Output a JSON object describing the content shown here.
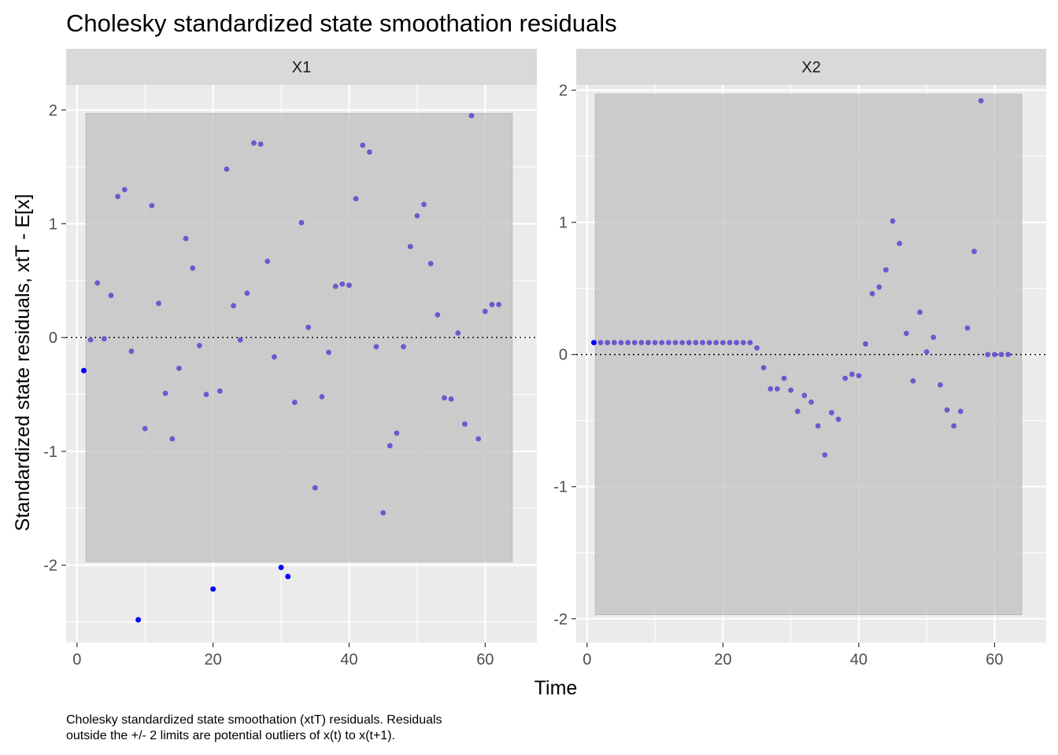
{
  "chart_data": {
    "type": "scatter",
    "title": "Cholesky standardized state smoothation residuals",
    "xlabel": "Time",
    "ylabel": "Standardized state residuals, xtT - E[x]",
    "caption_lines": [
      "Cholesky standardized state smoothation (xtT) residuals. Residuals",
      "outside the +/- 2 limits are potential outliers of x(t) to x(t+1)."
    ],
    "colors": {
      "panel_bg": "#EBEBEB",
      "grid": "#FFFFFF",
      "strip_bg": "#D9D9D9",
      "band": "#BEBEBE",
      "point": "#6A5ACD",
      "outlier": "#0000FF",
      "tick": "#333333"
    },
    "panels": [
      {
        "strip": "X1",
        "xlim": [
          -1.6,
          67.6
        ],
        "ylim": [
          -2.68,
          2.22
        ],
        "xticks": [
          0,
          20,
          40,
          60
        ],
        "xtick_labels": [
          "0",
          "20",
          "40",
          "60"
        ],
        "yticks": [
          -2,
          -1,
          0,
          1,
          2
        ],
        "ytick_labels": [
          "-2",
          "-1",
          "0",
          "1",
          "2"
        ],
        "band": {
          "x": [
            1.3,
            64
          ],
          "y": [
            -1.97,
            1.97
          ]
        },
        "points": [
          [
            1,
            -0.29
          ],
          [
            2,
            -0.02
          ],
          [
            3,
            0.48
          ],
          [
            4,
            -0.01
          ],
          [
            5,
            0.37
          ],
          [
            6,
            1.24
          ],
          [
            7,
            1.3
          ],
          [
            8,
            -0.12
          ],
          [
            9,
            -2.48
          ],
          [
            10,
            -0.8
          ],
          [
            11,
            1.16
          ],
          [
            12,
            0.3
          ],
          [
            13,
            -0.49
          ],
          [
            14,
            -0.89
          ],
          [
            15,
            -0.27
          ],
          [
            16,
            0.87
          ],
          [
            17,
            0.61
          ],
          [
            18,
            -0.07
          ],
          [
            19,
            -0.5
          ],
          [
            20,
            -2.21
          ],
          [
            21,
            -0.47
          ],
          [
            22,
            1.48
          ],
          [
            23,
            0.28
          ],
          [
            24,
            -0.02
          ],
          [
            25,
            0.39
          ],
          [
            26,
            1.71
          ],
          [
            27,
            1.7
          ],
          [
            28,
            0.67
          ],
          [
            29,
            -0.17
          ],
          [
            30,
            -2.02
          ],
          [
            31,
            -2.1
          ],
          [
            32,
            -0.57
          ],
          [
            33,
            1.01
          ],
          [
            34,
            0.09
          ],
          [
            35,
            -1.32
          ],
          [
            36,
            -0.52
          ],
          [
            37,
            -0.13
          ],
          [
            38,
            0.45
          ],
          [
            39,
            0.47
          ],
          [
            40,
            0.46
          ],
          [
            41,
            1.22
          ],
          [
            42,
            1.69
          ],
          [
            43,
            1.63
          ],
          [
            44,
            -0.08
          ],
          [
            45,
            -1.54
          ],
          [
            46,
            -0.95
          ],
          [
            47,
            -0.84
          ],
          [
            48,
            -0.08
          ],
          [
            49,
            0.8
          ],
          [
            50,
            1.07
          ],
          [
            51,
            1.17
          ],
          [
            52,
            0.65
          ],
          [
            53,
            0.2
          ],
          [
            54,
            -0.53
          ],
          [
            55,
            -0.54
          ],
          [
            56,
            0.04
          ],
          [
            57,
            -0.76
          ],
          [
            58,
            1.95
          ],
          [
            59,
            -0.89
          ],
          [
            60,
            0.23
          ],
          [
            61,
            0.29
          ],
          [
            62,
            0.29
          ]
        ],
        "outlier_points": [
          [
            1,
            -0.29
          ],
          [
            9,
            -2.48
          ],
          [
            20,
            -2.21
          ],
          [
            30,
            -2.02
          ],
          [
            31,
            -2.1
          ]
        ]
      },
      {
        "strip": "X2",
        "xlim": [
          -1.6,
          67.6
        ],
        "ylim": [
          -2.18,
          2.04
        ],
        "xticks": [
          0,
          20,
          40,
          60
        ],
        "xtick_labels": [
          "0",
          "20",
          "40",
          "60"
        ],
        "yticks": [
          -2,
          -1,
          0,
          1,
          2
        ],
        "ytick_labels": [
          "-2",
          "-1",
          "0",
          "1",
          "2"
        ],
        "band": {
          "x": [
            1.2,
            64
          ],
          "y": [
            -1.97,
            1.97
          ]
        },
        "points": [
          [
            1,
            0.09
          ],
          [
            2,
            0.09
          ],
          [
            3,
            0.09
          ],
          [
            4,
            0.09
          ],
          [
            5,
            0.09
          ],
          [
            6,
            0.09
          ],
          [
            7,
            0.09
          ],
          [
            8,
            0.09
          ],
          [
            9,
            0.09
          ],
          [
            10,
            0.09
          ],
          [
            11,
            0.09
          ],
          [
            12,
            0.09
          ],
          [
            13,
            0.09
          ],
          [
            14,
            0.09
          ],
          [
            15,
            0.09
          ],
          [
            16,
            0.09
          ],
          [
            17,
            0.09
          ],
          [
            18,
            0.09
          ],
          [
            19,
            0.09
          ],
          [
            20,
            0.09
          ],
          [
            21,
            0.09
          ],
          [
            22,
            0.09
          ],
          [
            23,
            0.09
          ],
          [
            24,
            0.09
          ],
          [
            25,
            0.05
          ],
          [
            26,
            -0.1
          ],
          [
            27,
            -0.26
          ],
          [
            28,
            -0.26
          ],
          [
            29,
            -0.18
          ],
          [
            30,
            -0.27
          ],
          [
            31,
            -0.43
          ],
          [
            32,
            -0.31
          ],
          [
            33,
            -0.36
          ],
          [
            34,
            -0.54
          ],
          [
            35,
            -0.76
          ],
          [
            36,
            -0.44
          ],
          [
            37,
            -0.49
          ],
          [
            38,
            -0.18
          ],
          [
            39,
            -0.15
          ],
          [
            40,
            -0.16
          ],
          [
            41,
            0.08
          ],
          [
            42,
            0.46
          ],
          [
            43,
            0.51
          ],
          [
            44,
            0.64
          ],
          [
            45,
            1.01
          ],
          [
            46,
            0.84
          ],
          [
            47,
            0.16
          ],
          [
            48,
            -0.2
          ],
          [
            49,
            0.32
          ],
          [
            50,
            0.02
          ],
          [
            51,
            0.13
          ],
          [
            52,
            -0.23
          ],
          [
            53,
            -0.42
          ],
          [
            54,
            -0.54
          ],
          [
            55,
            -0.43
          ],
          [
            56,
            0.2
          ],
          [
            57,
            0.78
          ],
          [
            58,
            1.92
          ],
          [
            59,
            0.0
          ],
          [
            60,
            0.0
          ],
          [
            61,
            0.0
          ],
          [
            62,
            0.0
          ]
        ],
        "outlier_points": [
          [
            1,
            0.09
          ]
        ]
      }
    ]
  }
}
